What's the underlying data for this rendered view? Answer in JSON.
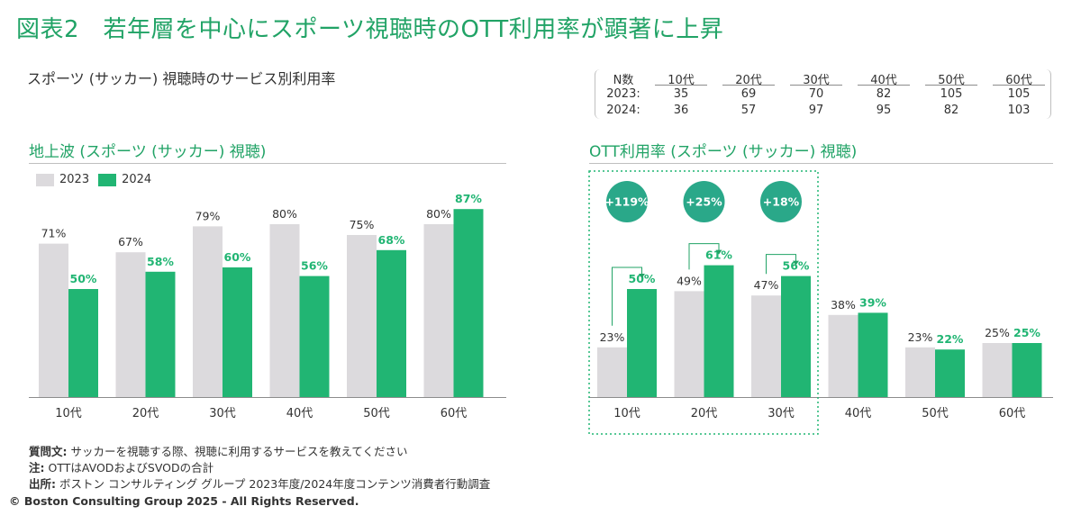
{
  "header": {
    "title": "図表2　若年層を中心にスポーツ視聴時のOTT利用率が顕著に上昇",
    "subtitle": "スポーツ (サッカー) 視聴時のサービス別利用率"
  },
  "colors": {
    "green": "#21b573",
    "gray": "#dcdadd",
    "accent": "#21a366",
    "badge": "#2aa889"
  },
  "legend": {
    "items": [
      "2023",
      "2024"
    ]
  },
  "n_table": {
    "header": [
      "N数",
      "10代",
      "20代",
      "30代",
      "40代",
      "50代",
      "60代"
    ],
    "rows": [
      [
        "2023:",
        "35",
        "69",
        "70",
        "82",
        "105",
        "105"
      ],
      [
        "2024:",
        "36",
        "57",
        "97",
        "95",
        "82",
        "103"
      ]
    ]
  },
  "chart_data": [
    {
      "type": "bar",
      "title": "地上波 (スポーツ (サッカー) 視聴)",
      "categories": [
        "10代",
        "20代",
        "30代",
        "40代",
        "50代",
        "60代"
      ],
      "series": [
        {
          "name": "2023",
          "values": [
            71,
            67,
            79,
            80,
            75,
            80
          ],
          "labels": [
            "71%",
            "67%",
            "79%",
            "80%",
            "75%",
            "80%"
          ]
        },
        {
          "name": "2024",
          "values": [
            50,
            58,
            60,
            56,
            68,
            87
          ],
          "labels": [
            "50%",
            "58%",
            "60%",
            "56%",
            "68%",
            "87%"
          ]
        }
      ],
      "ylim": [
        0,
        100
      ]
    },
    {
      "type": "bar",
      "title": "OTT利用率 (スポーツ (サッカー) 視聴)",
      "categories": [
        "10代",
        "20代",
        "30代",
        "40代",
        "50代",
        "60代"
      ],
      "series": [
        {
          "name": "2023",
          "values": [
            23,
            49,
            47,
            38,
            23,
            25
          ],
          "labels": [
            "23%",
            "49%",
            "47%",
            "38%",
            "23%",
            "25%"
          ]
        },
        {
          "name": "2024",
          "values": [
            50,
            61,
            56,
            39,
            22,
            25
          ],
          "labels": [
            "50%",
            "61%",
            "56%",
            "39%",
            "22%",
            "25%"
          ]
        }
      ],
      "annotations": [
        "+119%",
        "+25%",
        "+18%"
      ],
      "ylim": [
        0,
        100
      ]
    }
  ],
  "notes": [
    {
      "label": "質問文:",
      "text": "サッカーを視聴する際、視聴に利用するサービスを教えてください"
    },
    {
      "label": "注:",
      "text": "OTTはAVODおよびSVODの合計"
    },
    {
      "label": "出所:",
      "text": "ボストン コンサルティング グループ 2023年度/2024年度コンテンツ消費者行動調査"
    }
  ],
  "copyright": "© Boston Consulting Group 2025 - All Rights Reserved."
}
